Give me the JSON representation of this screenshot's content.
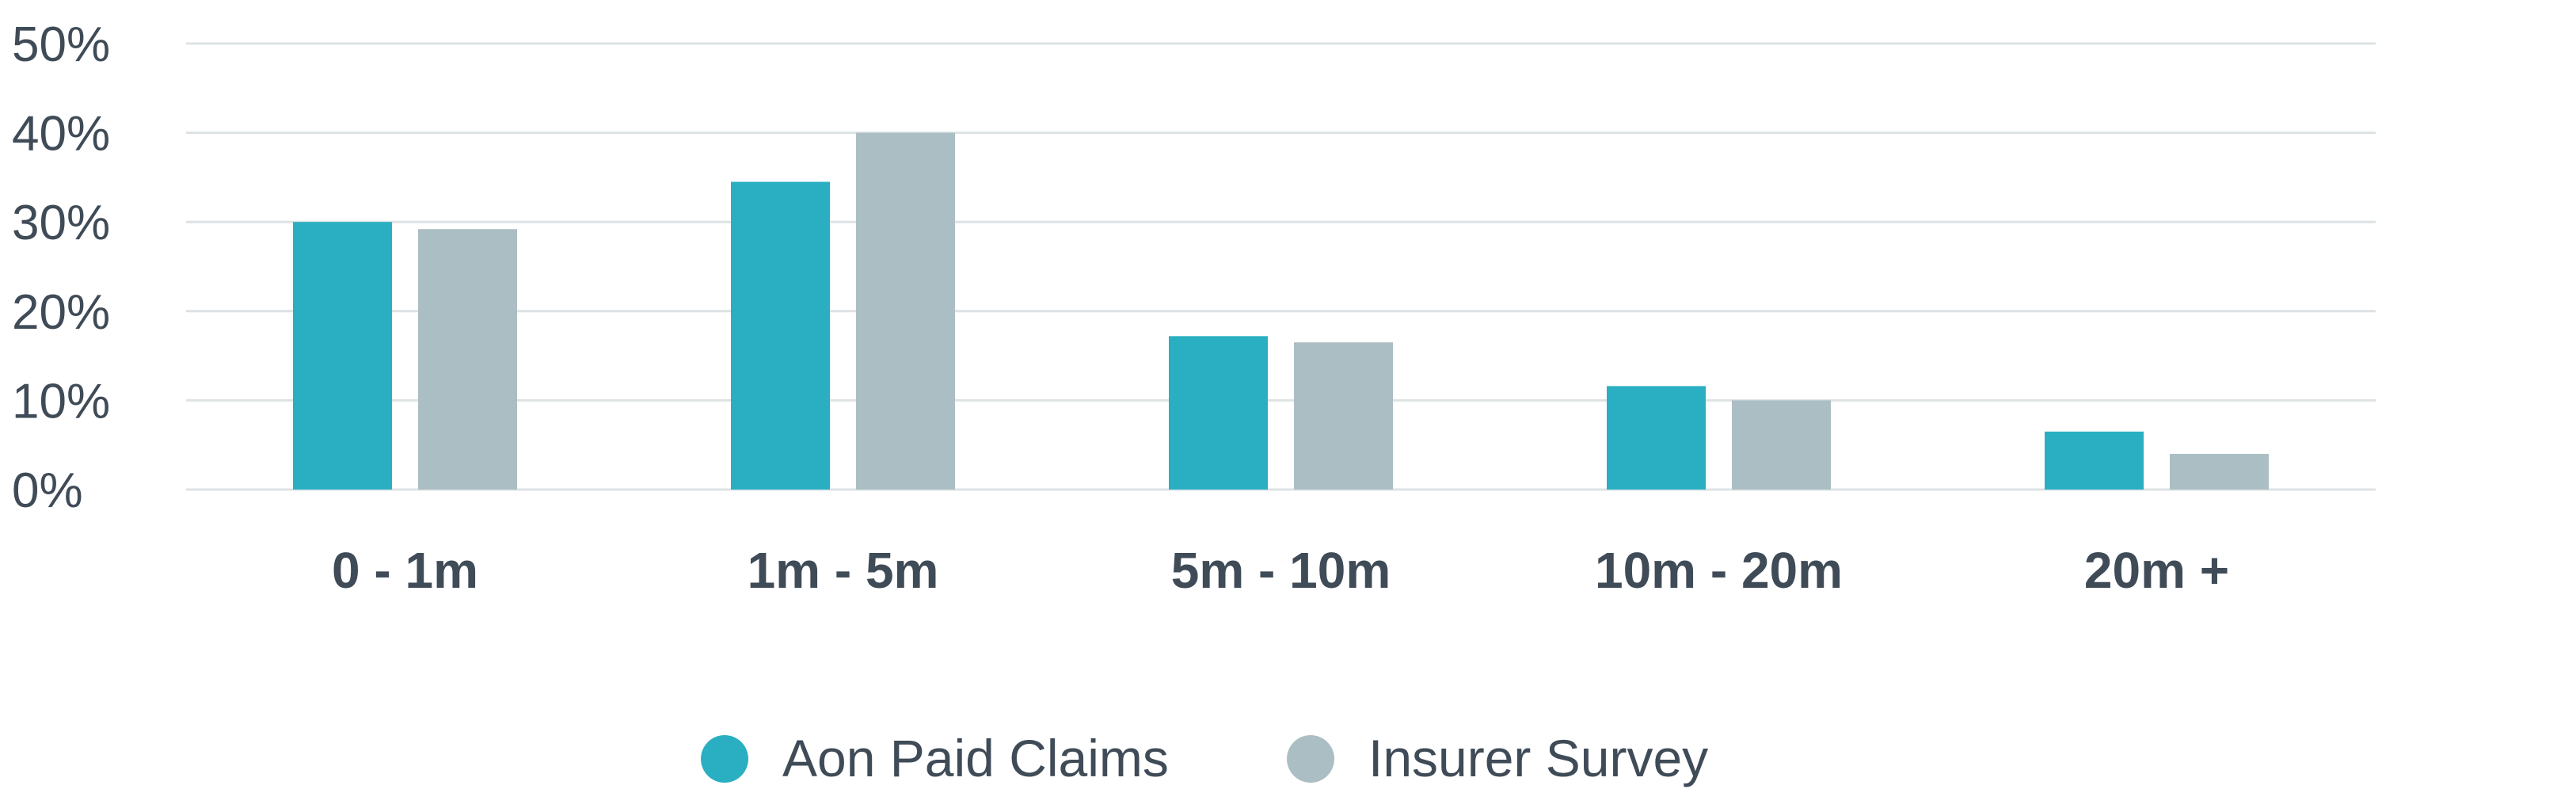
{
  "chart_data": {
    "type": "bar",
    "categories": [
      "0 - 1m",
      "1m - 5m",
      "5m - 10m",
      "10m - 20m",
      "20m +"
    ],
    "series": [
      {
        "name": "Aon Paid Claims",
        "color": "#2aafc2",
        "values": [
          30,
          34.5,
          17.2,
          11.6,
          6.5
        ]
      },
      {
        "name": "Insurer Survey",
        "color": "#abbec3",
        "values": [
          29.2,
          40,
          16.5,
          10,
          4
        ]
      }
    ],
    "y_ticks": [
      "0%",
      "10%",
      "20%",
      "30%",
      "40%",
      "50%"
    ],
    "ylim": [
      0,
      50
    ],
    "grid": true,
    "legend_position": "bottom-center",
    "title": "",
    "xlabel": "",
    "ylabel": ""
  }
}
